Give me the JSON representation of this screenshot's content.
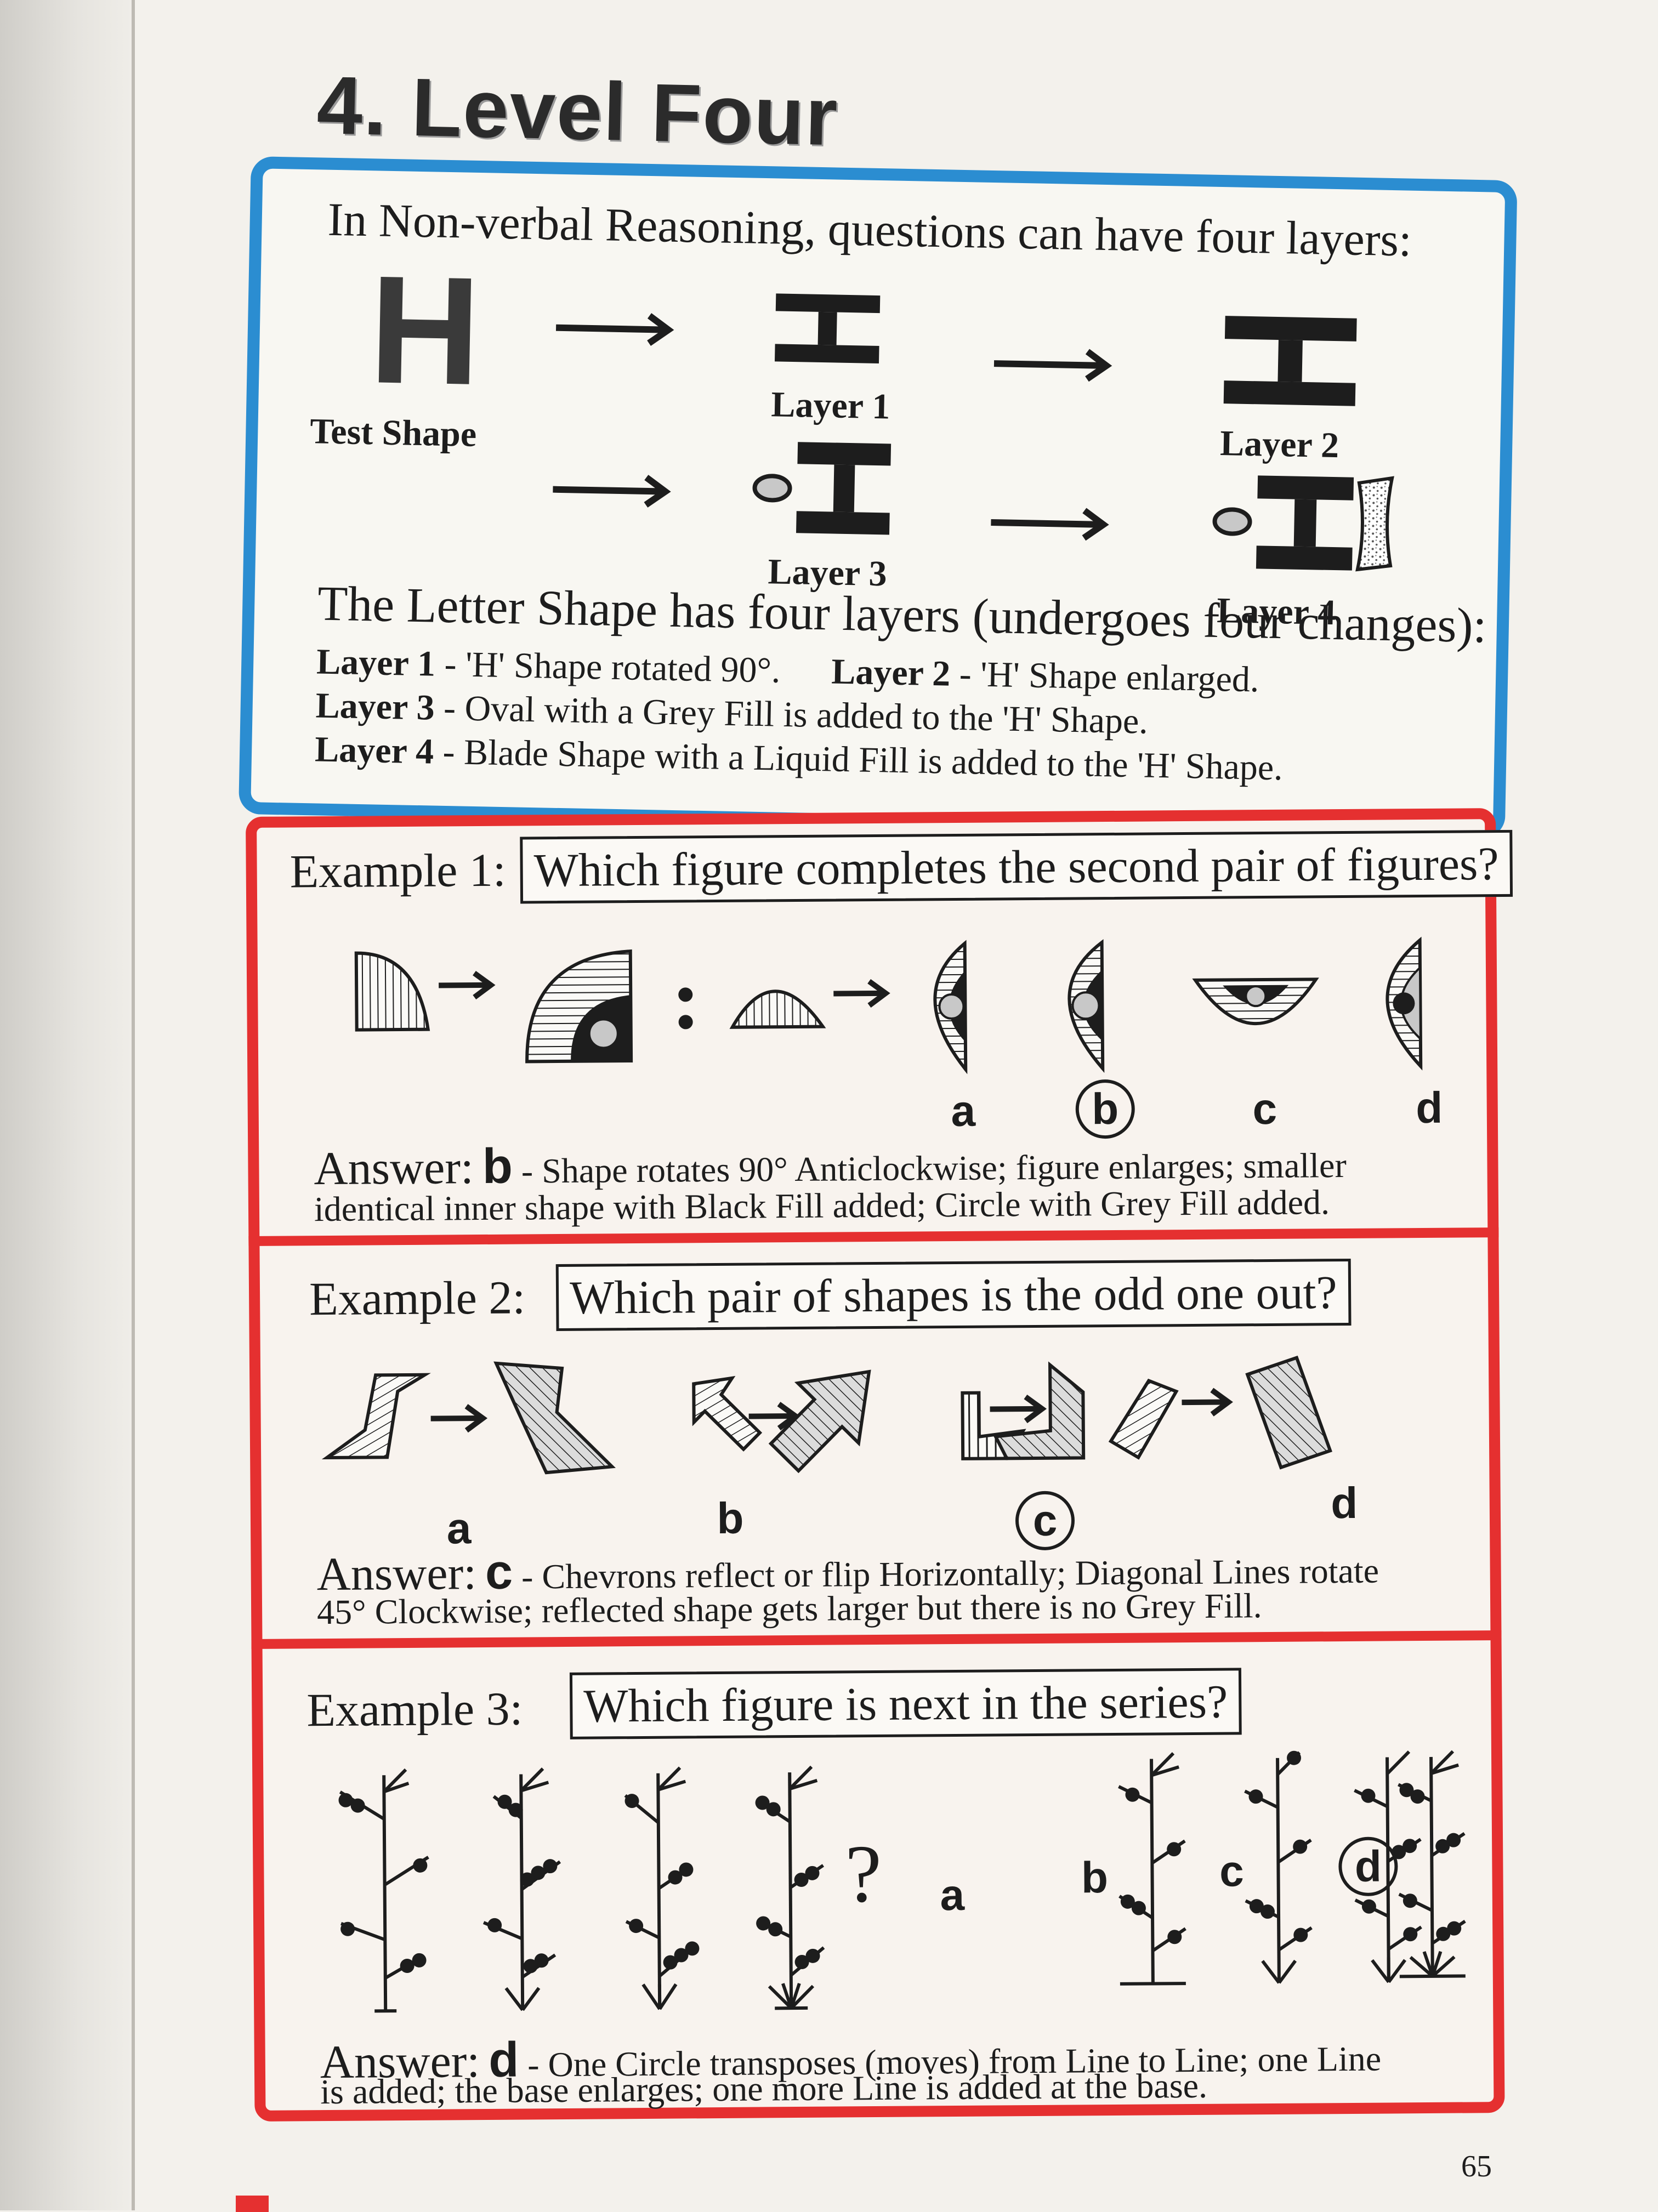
{
  "heading": "4. Level Four",
  "intro": {
    "title": "In Non-verbal Reasoning, questions can have four layers:",
    "test_shape_glyph": "H",
    "labels": {
      "test_shape": "Test Shape",
      "layer1": "Layer 1",
      "layer2": "Layer 2",
      "layer3": "Layer 3",
      "layer4": "Layer 4"
    },
    "summary": "The Letter Shape has four layers (undergoes four changes):",
    "layers": [
      {
        "name": "Layer 1",
        "text": " - 'H' Shape rotated 90°."
      },
      {
        "name": "Layer 2",
        "text": " - 'H' Shape enlarged."
      },
      {
        "name": "Layer 3",
        "text": " - Oval with a Grey Fill is added to the 'H' Shape."
      },
      {
        "name": "Layer 4",
        "text": " - Blade Shape with a Liquid Fill is added to the 'H' Shape."
      }
    ]
  },
  "examples": [
    {
      "label": "Example 1:",
      "question": "Which figure completes the second pair of figures?",
      "options": [
        "a",
        "b",
        "c",
        "d"
      ],
      "answer_word": "Answer:",
      "answer_letter": "b",
      "answer_text_1": " - Shape rotates 90° Anticlockwise; figure enlarges; smaller",
      "answer_text_2": "identical inner shape with Black Fill added; Circle with Grey Fill added.",
      "correct": "b"
    },
    {
      "label": "Example 2:",
      "question": "Which pair of shapes is the odd one out?",
      "options": [
        "a",
        "b",
        "c",
        "d"
      ],
      "answer_word": "Answer:",
      "answer_letter": "c",
      "answer_text_1": " - Chevrons reflect or flip Horizontally; Diagonal Lines rotate",
      "answer_text_2": "45° Clockwise; reflected shape gets larger but there is no Grey Fill.",
      "correct": "c"
    },
    {
      "label": "Example 3:",
      "question": "Which figure is next in the series?",
      "question_mark": "?",
      "options": [
        "a",
        "b",
        "c",
        "d"
      ],
      "answer_word": "Answer:",
      "answer_letter": "d",
      "answer_text_1": " - One Circle transposes (moves) from Line to Line; one Line",
      "answer_text_2": "is added; the base enlarges; one more Line is added at the base.",
      "correct": "d"
    }
  ],
  "page_number": "65",
  "colors": {
    "intro_border": "#2b8dd1",
    "examples_border": "#e53030",
    "ink": "#1d1d1d",
    "grey_fill": "#c8c8c8"
  }
}
